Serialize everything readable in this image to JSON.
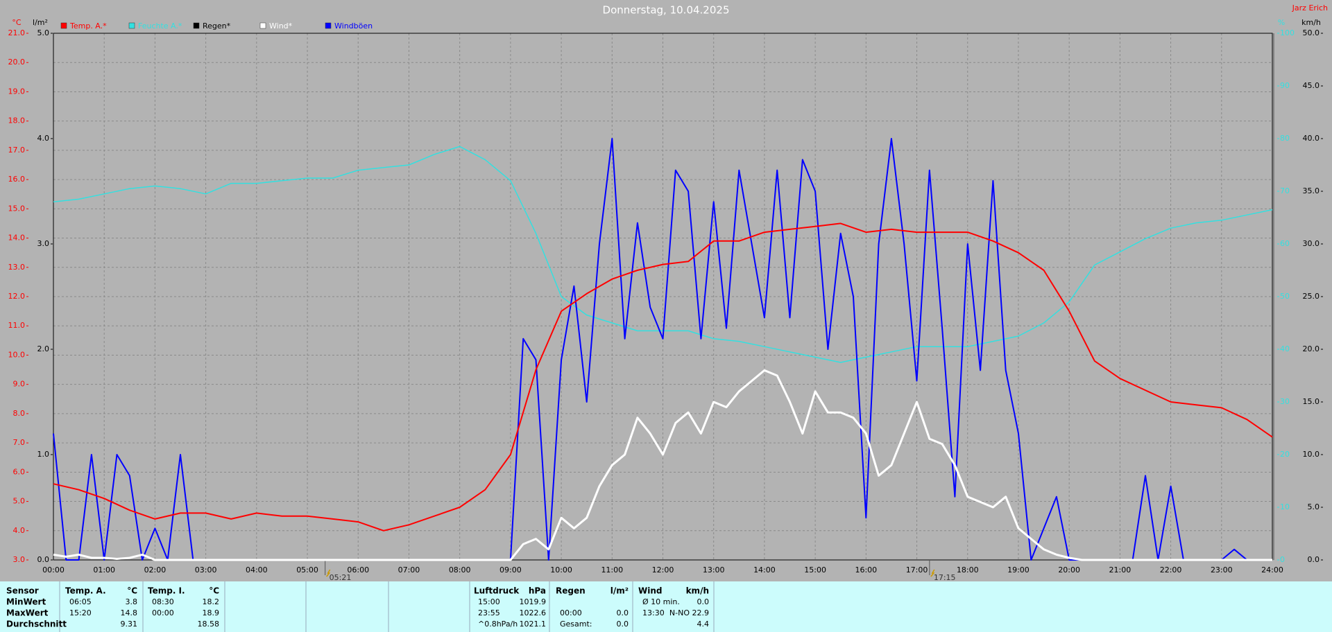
{
  "chart_data": {
    "type": "line",
    "title": "Donnerstag, 10.04.2025",
    "author": "Jarz Erich",
    "y_unit": "°C",
    "rain_unit": "l/m²",
    "humidity_unit": "%",
    "y2_unit": "km/h",
    "grid": true,
    "xlim": [
      0,
      24
    ],
    "xticks": [
      {
        "value": 0,
        "label": "00:00"
      },
      {
        "value": 1,
        "label": "01:00"
      },
      {
        "value": 2,
        "label": "02:00"
      },
      {
        "value": 3,
        "label": "03:00"
      },
      {
        "value": 4,
        "label": "04:00"
      },
      {
        "value": 5,
        "label": "05:00"
      },
      {
        "value": 6,
        "label": "06:00"
      },
      {
        "value": 7,
        "label": "07:00"
      },
      {
        "value": 8,
        "label": "08:00"
      },
      {
        "value": 9,
        "label": "09:00"
      },
      {
        "value": 10,
        "label": "10:00"
      },
      {
        "value": 11,
        "label": "11:00"
      },
      {
        "value": 12,
        "label": "12:00"
      },
      {
        "value": 13,
        "label": "13:00"
      },
      {
        "value": 14,
        "label": "14:00"
      },
      {
        "value": 15,
        "label": "15:00"
      },
      {
        "value": 16,
        "label": "16:00"
      },
      {
        "value": 17,
        "label": "17:00"
      },
      {
        "value": 18,
        "label": "18:00"
      },
      {
        "value": 19,
        "label": "19:00"
      },
      {
        "value": 20,
        "label": "20:00"
      },
      {
        "value": 21,
        "label": "21:00"
      },
      {
        "value": 22,
        "label": "22:00"
      },
      {
        "value": 23,
        "label": "23:00"
      },
      {
        "value": 24,
        "label": "24:00"
      }
    ],
    "ylim": [
      3,
      21
    ],
    "yticks": [
      {
        "value": 3,
        "label": "3.0"
      },
      {
        "value": 4,
        "label": "4.0"
      },
      {
        "value": 5,
        "label": "5.0"
      },
      {
        "value": 6,
        "label": "6.0"
      },
      {
        "value": 7,
        "label": "7.0"
      },
      {
        "value": 8,
        "label": "8.0"
      },
      {
        "value": 9,
        "label": "9.0"
      },
      {
        "value": 10,
        "label": "10.0"
      },
      {
        "value": 11,
        "label": "11.0"
      },
      {
        "value": 12,
        "label": "12.0"
      },
      {
        "value": 13,
        "label": "13.0"
      },
      {
        "value": 14,
        "label": "14.0"
      },
      {
        "value": 15,
        "label": "15.0"
      },
      {
        "value": 16,
        "label": "16.0"
      },
      {
        "value": 17,
        "label": "17.0"
      },
      {
        "value": 18,
        "label": "18.0"
      },
      {
        "value": 19,
        "label": "19.0"
      },
      {
        "value": 20,
        "label": "20.0"
      },
      {
        "value": 21,
        "label": "21.0"
      }
    ],
    "rain_ylim": [
      0,
      5
    ],
    "rain_yticks": [
      {
        "value": 0,
        "label": "0.0"
      },
      {
        "value": 1,
        "label": "1.0"
      },
      {
        "value": 2,
        "label": "2.0"
      },
      {
        "value": 3,
        "label": "3.0"
      },
      {
        "value": 4,
        "label": "4.0"
      },
      {
        "value": 5,
        "label": "5.0"
      }
    ],
    "humidity_ylim": [
      0,
      100
    ],
    "humidity_yticks": [
      0,
      10,
      20,
      30,
      40,
      50,
      60,
      70,
      80,
      90,
      100
    ],
    "y2lim": [
      0,
      50
    ],
    "y2ticks": [
      {
        "value": 0,
        "label": "0.0"
      },
      {
        "value": 5,
        "label": "5.0"
      },
      {
        "value": 10,
        "label": "10.0"
      },
      {
        "value": 15,
        "label": "15.0"
      },
      {
        "value": 20,
        "label": "20.0"
      },
      {
        "value": 25,
        "label": "25.0"
      },
      {
        "value": 30,
        "label": "30.0"
      },
      {
        "value": 35,
        "label": "35.0"
      },
      {
        "value": 40,
        "label": "40.0"
      },
      {
        "value": 45,
        "label": "45.0"
      },
      {
        "value": 50,
        "label": "50.0"
      }
    ],
    "sun_markers": [
      {
        "label": "05:21",
        "x": 5.35
      },
      {
        "label": "17:15",
        "x": 17.25
      }
    ],
    "series": [
      {
        "name": "Temp. A.*",
        "color": "#ff0000",
        "axis": "y",
        "width": 2,
        "x": [
          0,
          0.5,
          1,
          1.5,
          2,
          2.5,
          3,
          3.5,
          4,
          4.5,
          5,
          5.5,
          6,
          6.5,
          7,
          7.5,
          8,
          8.5,
          9,
          9.5,
          10,
          10.5,
          11,
          11.5,
          12,
          12.5,
          13,
          13.5,
          14,
          14.5,
          15,
          15.5,
          16,
          16.5,
          17,
          17.5,
          18,
          18.5,
          19,
          19.5,
          20,
          20.5,
          21,
          21.5,
          22,
          22.5,
          23,
          23.5,
          24
        ],
        "values": [
          5.6,
          5.4,
          5.1,
          4.7,
          4.4,
          4.6,
          4.6,
          4.4,
          4.6,
          4.5,
          4.5,
          4.4,
          4.3,
          4.0,
          4.2,
          4.5,
          4.8,
          5.4,
          6.6,
          9.5,
          11.5,
          12.1,
          12.6,
          12.9,
          13.1,
          13.2,
          13.9,
          13.9,
          14.2,
          14.3,
          14.4,
          14.5,
          14.2,
          14.3,
          14.2,
          14.2,
          14.2,
          13.9,
          13.5,
          12.9,
          11.5,
          9.8,
          9.2,
          8.8,
          8.4,
          8.3,
          8.2,
          7.8,
          7.2
        ]
      },
      {
        "name": "Feuchte A.*",
        "color": "#33e0e0",
        "axis": "humidity",
        "width": 1.5,
        "x": [
          0,
          0.5,
          1,
          1.5,
          2,
          2.5,
          3,
          3.5,
          4,
          4.5,
          5,
          5.5,
          6,
          6.5,
          7,
          7.5,
          8,
          8.5,
          9,
          9.5,
          10,
          10.5,
          11,
          11.5,
          12,
          12.5,
          13,
          13.5,
          14,
          14.5,
          15,
          15.5,
          16,
          16.5,
          17,
          17.5,
          18,
          18.5,
          19,
          19.5,
          20,
          20.5,
          21,
          21.5,
          22,
          22.5,
          23,
          23.5,
          24
        ],
        "values": [
          68,
          68.5,
          69.5,
          70.5,
          71,
          70.5,
          69.5,
          71.5,
          71.5,
          72,
          72.5,
          72.5,
          74,
          74.5,
          75,
          77,
          78.5,
          76,
          72,
          62,
          50,
          46.5,
          45,
          43.5,
          43.5,
          43.5,
          42,
          41.5,
          40.5,
          39.5,
          38.5,
          37.5,
          38.5,
          39.5,
          40.5,
          40.5,
          40.5,
          41.5,
          42.5,
          45,
          49,
          56,
          58.5,
          61,
          63,
          64,
          64.5,
          65.5,
          66.5
        ]
      },
      {
        "name": "Regen*",
        "color": "#000000",
        "axis": "rain",
        "width": 2,
        "x": [],
        "values": []
      },
      {
        "name": "Wind*",
        "color": "#ffffff",
        "axis": "y2",
        "width": 3,
        "x": [
          0,
          0.25,
          0.5,
          0.75,
          1,
          1.25,
          1.5,
          1.75,
          2,
          2.25,
          2.5,
          2.75,
          3,
          3.25,
          3.5,
          3.75,
          4,
          4.25,
          4.5,
          4.75,
          5,
          5.25,
          5.5,
          5.75,
          6,
          6.25,
          6.5,
          6.75,
          7,
          7.25,
          7.5,
          7.75,
          8,
          8.25,
          8.5,
          8.75,
          9,
          9.25,
          9.5,
          9.75,
          10,
          10.25,
          10.5,
          10.75,
          11,
          11.25,
          11.5,
          11.75,
          12,
          12.25,
          12.5,
          12.75,
          13,
          13.25,
          13.5,
          13.75,
          14,
          14.25,
          14.5,
          14.75,
          15,
          15.25,
          15.5,
          15.75,
          16,
          16.25,
          16.5,
          16.75,
          17,
          17.25,
          17.5,
          17.75,
          18,
          18.25,
          18.5,
          18.75,
          19,
          19.25,
          19.5,
          19.75,
          20,
          20.25,
          20.5,
          20.75,
          21,
          21.25,
          21.5,
          21.75,
          22,
          22.25,
          22.5,
          22.75,
          23,
          23.25,
          23.5,
          23.75,
          24
        ],
        "values": [
          0.5,
          0.3,
          0.5,
          0.2,
          0.2,
          0.1,
          0.2,
          0.5,
          0,
          0,
          0,
          0,
          0,
          0,
          0,
          0,
          0,
          0,
          0,
          0,
          0,
          0,
          0,
          0,
          0,
          0,
          0,
          0,
          0,
          0,
          0,
          0,
          0,
          0,
          0,
          0,
          0,
          1.5,
          2,
          1,
          4,
          3,
          4,
          7,
          9,
          10,
          13.5,
          12,
          10,
          13,
          14,
          12,
          15,
          14.5,
          16,
          17,
          18,
          17.5,
          15,
          12,
          16,
          14,
          14,
          13.5,
          12,
          8,
          9,
          12,
          15,
          11.5,
          11,
          9,
          6,
          5.5,
          5,
          6,
          3,
          2,
          1,
          0.5,
          0.2,
          0,
          0,
          0,
          0,
          0,
          0,
          0,
          0,
          0,
          0,
          0,
          0,
          0,
          0,
          0,
          0
        ]
      },
      {
        "name": "Windböen",
        "color": "#0000ff",
        "axis": "y2",
        "width": 2,
        "x": [
          0,
          0.25,
          0.5,
          0.75,
          1,
          1.25,
          1.5,
          1.75,
          2,
          2.25,
          2.5,
          2.75,
          3,
          3.25,
          3.5,
          3.75,
          4,
          4.25,
          4.5,
          4.75,
          5,
          5.25,
          5.5,
          5.75,
          6,
          6.25,
          6.5,
          6.75,
          7,
          7.25,
          7.5,
          7.75,
          8,
          8.25,
          8.5,
          8.75,
          9,
          9.25,
          9.5,
          9.75,
          10,
          10.25,
          10.5,
          10.75,
          11,
          11.25,
          11.5,
          11.75,
          12,
          12.25,
          12.5,
          12.75,
          13,
          13.25,
          13.5,
          13.75,
          14,
          14.25,
          14.5,
          14.75,
          15,
          15.25,
          15.5,
          15.75,
          16,
          16.25,
          16.5,
          16.75,
          17,
          17.25,
          17.5,
          17.75,
          18,
          18.25,
          18.5,
          18.75,
          19,
          19.25,
          19.5,
          19.75,
          20,
          20.25,
          20.5,
          20.75,
          21,
          21.25,
          21.5,
          21.75,
          22,
          22.25,
          22.5,
          22.75,
          23,
          23.25,
          23.5,
          23.75,
          24
        ],
        "values": [
          12,
          0,
          0,
          10,
          0,
          10,
          8,
          0,
          3,
          0,
          10,
          0,
          0,
          0,
          0,
          0,
          0,
          0,
          0,
          0,
          0,
          0,
          0,
          0,
          0,
          0,
          0,
          0,
          0,
          0,
          0,
          0,
          0,
          0,
          0,
          0,
          0,
          21,
          19,
          0,
          19,
          26,
          15,
          30,
          40,
          21,
          32,
          24,
          21,
          37,
          35,
          21,
          34,
          22,
          37,
          30,
          23,
          37,
          23,
          38,
          35,
          20,
          31,
          25,
          4,
          30,
          40,
          30,
          17,
          37,
          22,
          6,
          30,
          18,
          36,
          18,
          12,
          0,
          3,
          6,
          0,
          0,
          0,
          0,
          0,
          0,
          8,
          0,
          7,
          0,
          0,
          0,
          0,
          1,
          0,
          0,
          0
        ]
      }
    ]
  },
  "stats": {
    "row_labels": [
      "Sensor",
      "MinWert",
      "MaxWert",
      "Durchschnitt"
    ],
    "blocks": [
      {
        "header": [
          "Temp. A.",
          "°C"
        ],
        "rows": [
          [
            "06:05",
            "3.8"
          ],
          [
            "15:20",
            "14.8"
          ],
          [
            null,
            "9.31"
          ]
        ]
      },
      {
        "header": [
          "Temp. I.",
          "°C"
        ],
        "rows": [
          [
            "08:30",
            "18.2"
          ],
          [
            "00:00",
            "18.9"
          ],
          [
            null,
            "18.58"
          ]
        ]
      },
      {
        "header": [
          "Luftdruck",
          "hPa"
        ],
        "rows": [
          [
            "15:00",
            "1019.9"
          ],
          [
            "23:55",
            "1022.6"
          ],
          [
            "^0.8hPa/h",
            "1021.1"
          ]
        ]
      },
      {
        "header": [
          "Regen",
          "l/m²"
        ],
        "rows": [
          [
            null,
            null
          ],
          [
            "00:00",
            "0.0"
          ],
          [
            "Gesamt:",
            "0.0"
          ]
        ]
      },
      {
        "header": [
          "Wind",
          "km/h"
        ],
        "rows": [
          [
            "Ø 10 min.",
            "0.0"
          ],
          [
            "13:30",
            "N-NO 22.9"
          ],
          [
            null,
            "4.4"
          ]
        ]
      }
    ]
  }
}
